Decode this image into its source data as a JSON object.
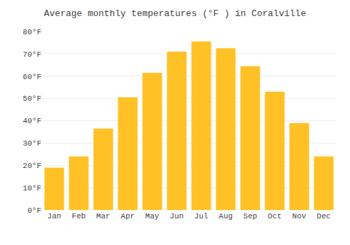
{
  "chart_data": {
    "type": "bar",
    "title": "Average monthly temperatures (°F ) in Coralville",
    "categories": [
      "Jan",
      "Feb",
      "Mar",
      "Apr",
      "May",
      "Jun",
      "Jul",
      "Aug",
      "Sep",
      "Oct",
      "Nov",
      "Dec"
    ],
    "values": [
      19,
      24,
      36.5,
      50.5,
      61.5,
      71,
      75.5,
      72.5,
      64.5,
      53,
      39,
      24
    ],
    "color": "#FFC125",
    "ylim": [
      0,
      80
    ],
    "yticks": [
      {
        "value": 0,
        "label": "0°F"
      },
      {
        "value": 10,
        "label": "10°F"
      },
      {
        "value": 20,
        "label": "20°F"
      },
      {
        "value": 30,
        "label": "30°F"
      },
      {
        "value": 40,
        "label": "40°F"
      },
      {
        "value": 50,
        "label": "50°F"
      },
      {
        "value": 60,
        "label": "60°F"
      },
      {
        "value": 70,
        "label": "70°F"
      },
      {
        "value": 80,
        "label": "80°F"
      }
    ],
    "grid": true
  }
}
